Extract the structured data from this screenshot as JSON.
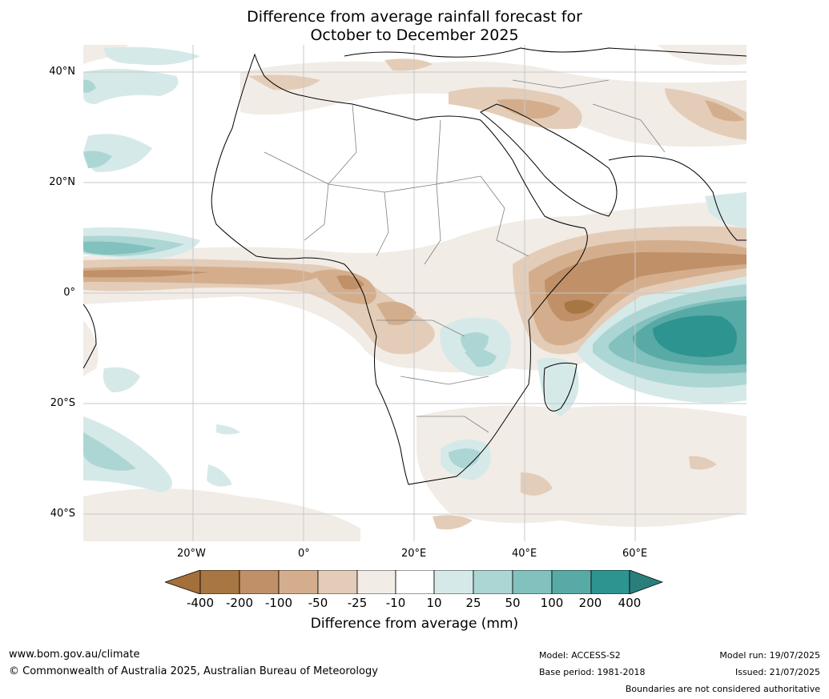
{
  "title_line1": "Difference from average rainfall forecast for",
  "title_line2": "October to December 2025",
  "lat_labels": [
    "40°N",
    "20°N",
    "0°",
    "20°S",
    "40°S"
  ],
  "lon_labels": [
    "20°W",
    "0°",
    "20°E",
    "40°E",
    "60°E"
  ],
  "legend": {
    "title": "Difference from average (mm)",
    "ticks": [
      "-400",
      "-200",
      "-100",
      "-50",
      "-25",
      "-10",
      "10",
      "25",
      "50",
      "100",
      "200",
      "400"
    ],
    "colors": [
      "#a56f3a",
      "#a87642",
      "#c09068",
      "#d4ae8c",
      "#e3cdb8",
      "#f2ece6",
      "#ffffff",
      "#d5e9e8",
      "#acd6d4",
      "#82c1be",
      "#58aaa6",
      "#2e9490",
      "#2a7f7c"
    ]
  },
  "footer": {
    "website": "www.bom.gov.au/climate",
    "copyright": "© Commonwealth of Australia 2025, Australian Bureau of Meteorology",
    "model": "Model: ACCESS-S2",
    "base_period": "Base period: 1981-2018",
    "model_run": "Model run: 19/07/2025",
    "issued": "Issued: 21/07/2025",
    "boundaries_note": "Boundaries are not considered authoritative"
  }
}
